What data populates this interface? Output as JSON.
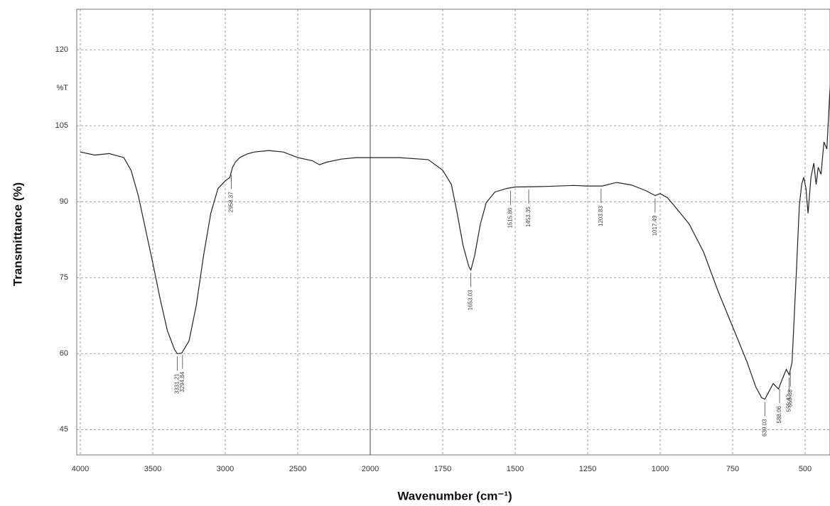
{
  "chart_data": {
    "type": "line",
    "x_label": "Wavenumber (cm⁻¹)",
    "y_label": "Transmittance (%)",
    "y_unit_label": "%T",
    "xlim": [
      4000,
      400
    ],
    "xbreak": 2000,
    "xticks": [
      4000,
      3500,
      3000,
      2500,
      2000,
      1750,
      1500,
      1250,
      1000,
      750,
      500
    ],
    "ylim": [
      40,
      128
    ],
    "yticks": [
      45,
      60,
      75,
      90,
      105,
      120
    ],
    "grid": true,
    "color": "#222222",
    "x": [
      4000,
      3900,
      3800,
      3700,
      3650,
      3600,
      3500,
      3450,
      3400,
      3350,
      3331,
      3300,
      3250,
      3200,
      3150,
      3100,
      3050,
      3000,
      2968,
      2950,
      2930,
      2900,
      2850,
      2800,
      2700,
      2600,
      2500,
      2400,
      2350,
      2300,
      2200,
      2100,
      2000,
      1900,
      1800,
      1750,
      1720,
      1700,
      1680,
      1660,
      1653,
      1640,
      1620,
      1600,
      1570,
      1530,
      1500,
      1400,
      1300,
      1250,
      1200,
      1150,
      1100,
      1050,
      1017,
      1000,
      975,
      950,
      900,
      850,
      800,
      750,
      700,
      670,
      650,
      639,
      620,
      610,
      592,
      580,
      565,
      555,
      545,
      530,
      520,
      512,
      505,
      497,
      490,
      480,
      470,
      462,
      455,
      445,
      435,
      425,
      415,
      410
    ],
    "values": [
      99.8,
      99.2,
      99.5,
      98.7,
      96.2,
      91.2,
      77.9,
      70.9,
      64.6,
      60.8,
      60.0,
      60.1,
      62.5,
      69.5,
      79.3,
      87.7,
      92.6,
      94.1,
      94.8,
      96.8,
      97.8,
      98.7,
      99.4,
      99.8,
      100.1,
      99.8,
      98.7,
      98.1,
      97.3,
      97.8,
      98.4,
      98.7,
      98.7,
      98.7,
      98.3,
      96.2,
      93.4,
      87.7,
      81.4,
      77.2,
      76.5,
      79.3,
      85.6,
      89.8,
      91.9,
      92.6,
      92.9,
      93.0,
      93.2,
      93.1,
      93.1,
      93.8,
      93.3,
      92.2,
      91.2,
      91.6,
      90.8,
      89.1,
      85.6,
      80.0,
      72.3,
      65.3,
      58.3,
      53.4,
      51.3,
      51.0,
      53.0,
      54.1,
      53.0,
      54.8,
      56.9,
      55.8,
      58.3,
      76.5,
      89.1,
      93.4,
      94.8,
      92.6,
      87.7,
      94.8,
      97.6,
      93.4,
      96.8,
      95.4,
      101.8,
      100.4,
      111.6,
      115.1
    ],
    "peaks": [
      3331.21,
      3294.84,
      2958.37,
      1653.03,
      1515.86,
      1453.35,
      1203.83,
      1017.49,
      639.03,
      588.06,
      555.42,
      550.88
    ]
  }
}
